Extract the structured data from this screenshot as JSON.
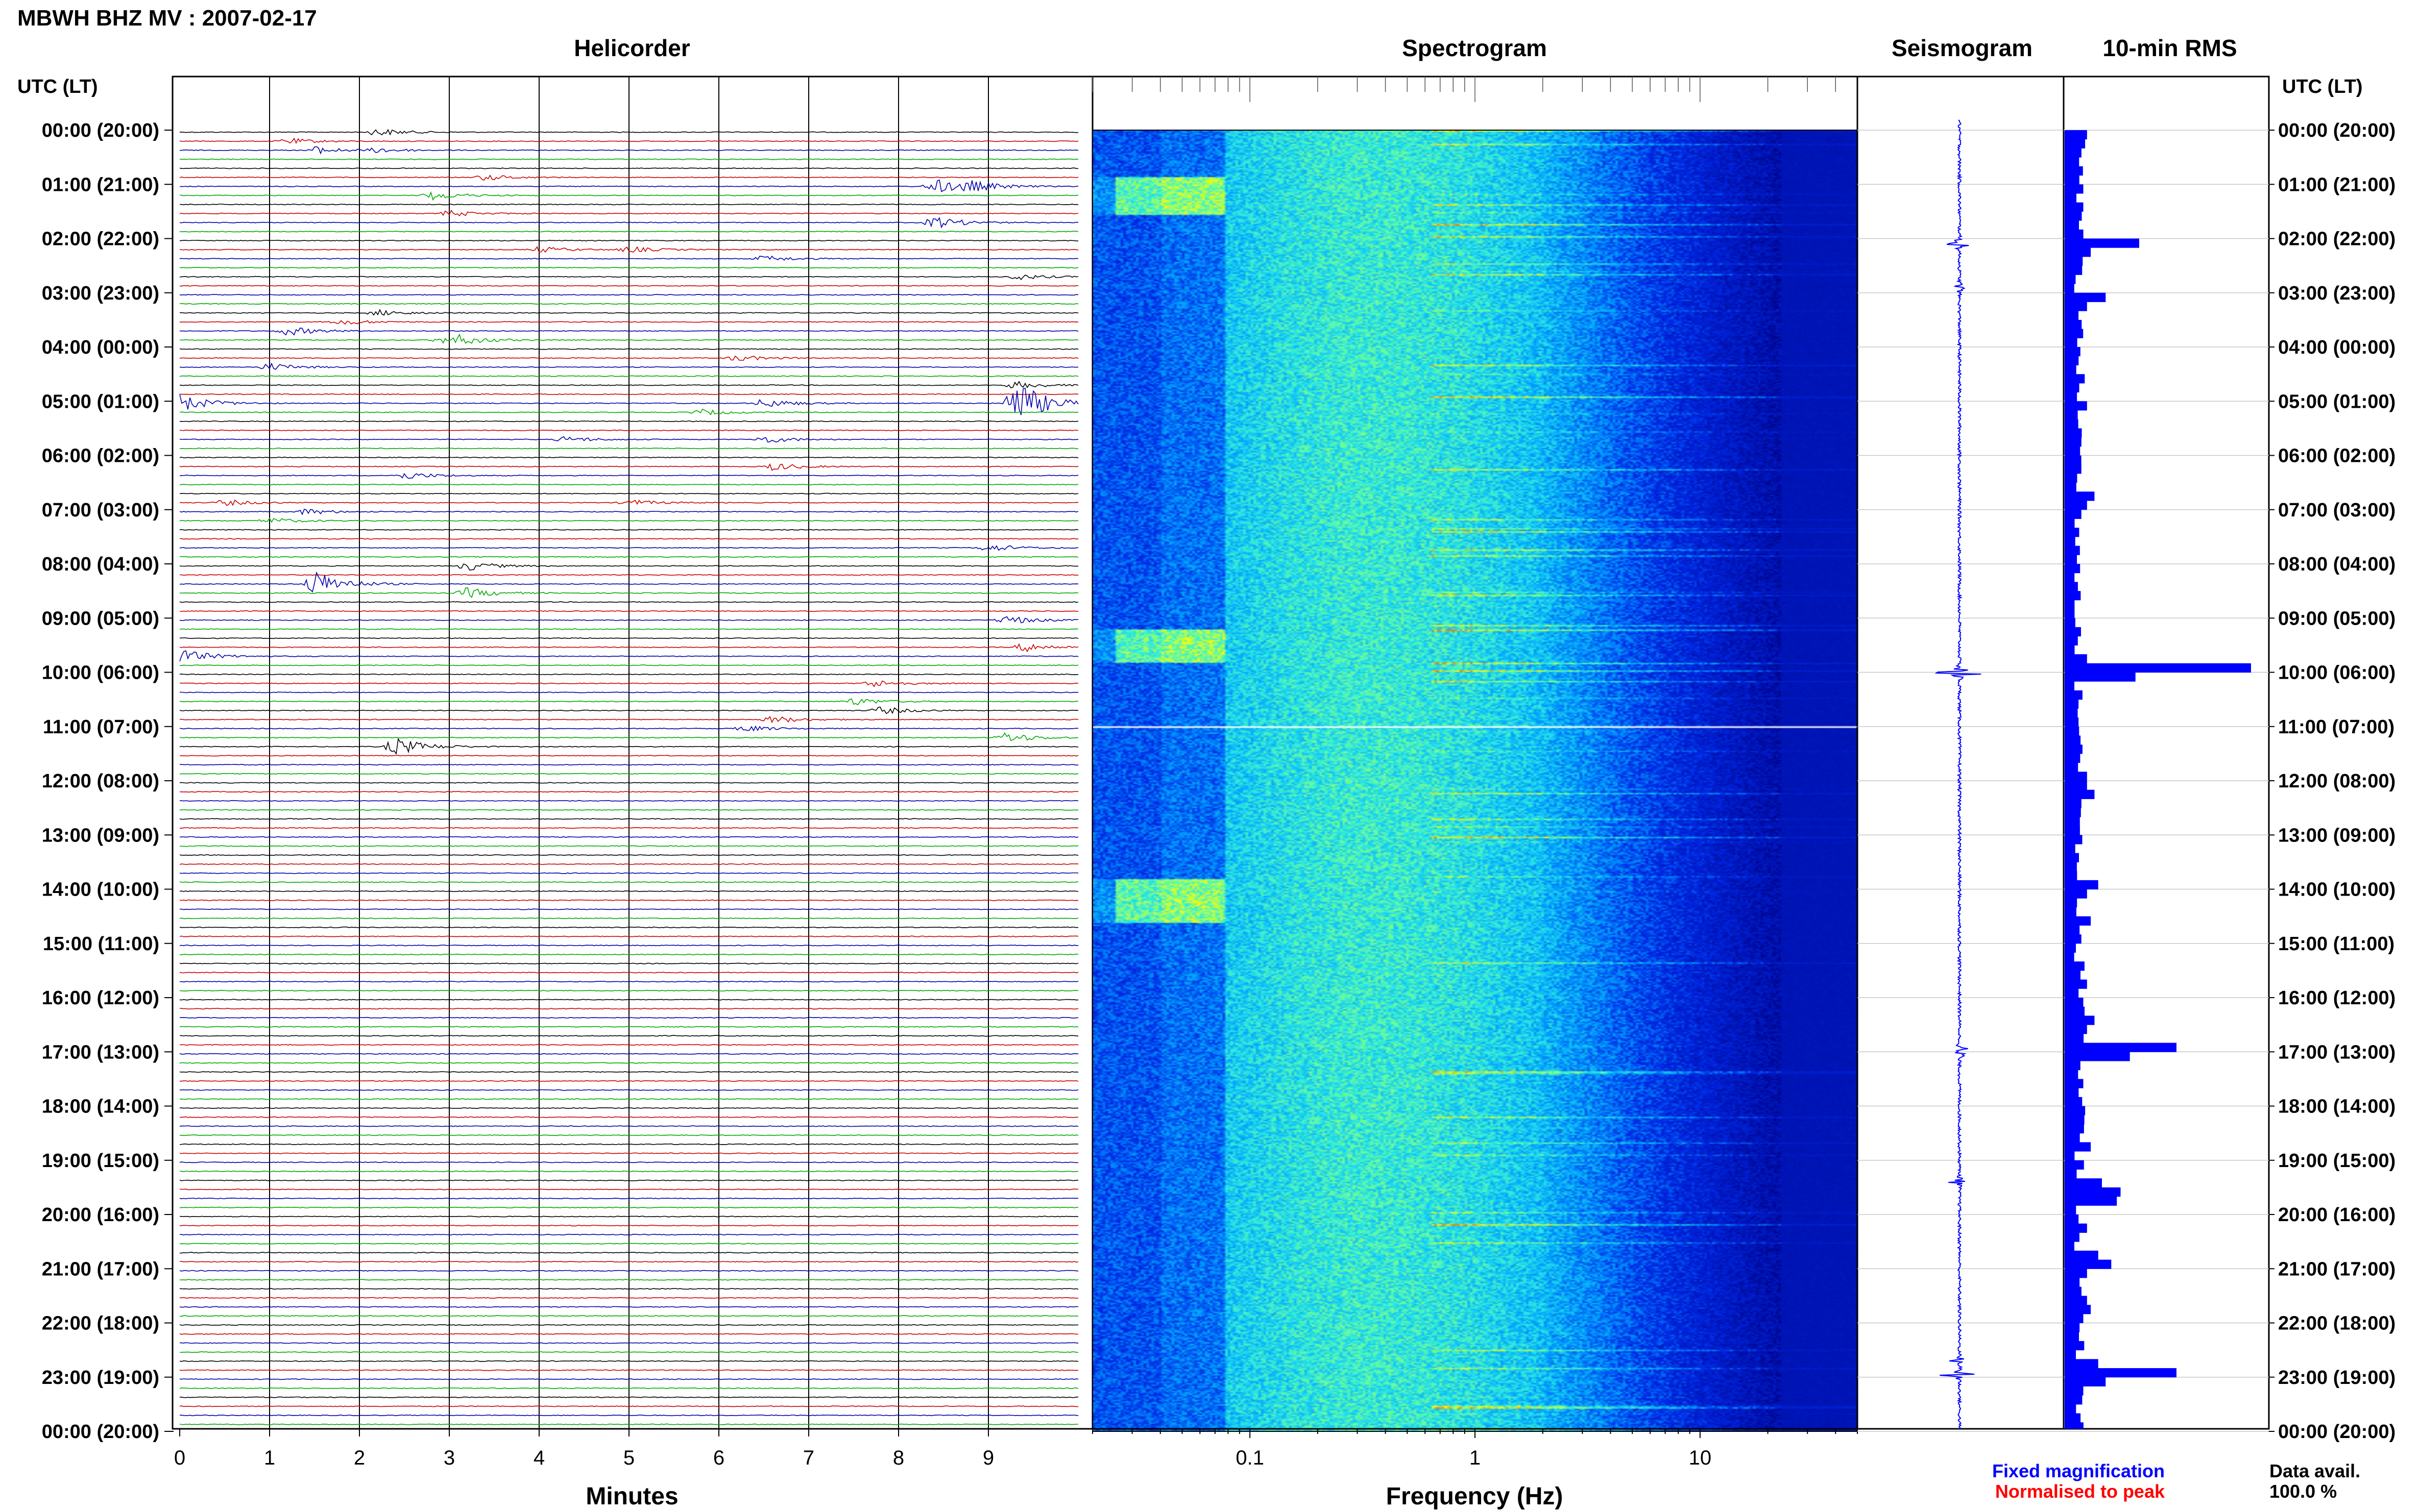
{
  "title": "MBWH BHZ MV : 2007-02-17",
  "panels": {
    "helicorder": "Helicorder",
    "spectrogram": "Spectrogram",
    "seismogram": "Seismogram",
    "rms": "10-min RMS"
  },
  "axis": {
    "time_header_left": "UTC (LT)",
    "time_header_right": "UTC (LT)",
    "minutes_label": "Minutes",
    "frequency_label": "Frequency (Hz)"
  },
  "legend": {
    "fixed": "Fixed magnification",
    "normalised": "Normalised to peak",
    "avail_label": "Data avail.",
    "avail_value": "100.0 %"
  },
  "colors": {
    "fixed": "#0000ff",
    "normalised": "#ff0000",
    "trace_cycle": [
      "#000000",
      "#cc0000",
      "#0000aa",
      "#00aa00"
    ]
  },
  "chart_data": [
    {
      "type": "helicorder",
      "xlabel": "Minutes",
      "x_ticks": [
        0,
        1,
        2,
        3,
        4,
        5,
        6,
        7,
        8,
        9
      ],
      "xlim": [
        0,
        10
      ],
      "rows_per_hour": 6,
      "time_labels": [
        "00:00 (20:00)",
        "01:00 (21:00)",
        "02:00 (22:00)",
        "03:00 (23:00)",
        "04:00 (00:00)",
        "05:00 (01:00)",
        "06:00 (02:00)",
        "07:00 (03:00)",
        "08:00 (04:00)",
        "09:00 (05:00)",
        "10:00 (06:00)",
        "11:00 (07:00)",
        "12:00 (08:00)",
        "13:00 (09:00)",
        "14:00 (10:00)",
        "15:00 (11:00)",
        "16:00 (12:00)",
        "17:00 (13:00)",
        "18:00 (14:00)",
        "19:00 (15:00)",
        "20:00 (16:00)",
        "21:00 (17:00)",
        "22:00 (18:00)",
        "23:00 (19:00)",
        "00:00 (20:00)"
      ],
      "events": [
        {
          "row": 0,
          "minute": 2.2,
          "amp": 0.25
        },
        {
          "row": 1,
          "minute": 1.2,
          "amp": 0.2
        },
        {
          "row": 2,
          "minute": 1.5,
          "amp": 0.25
        },
        {
          "row": 2,
          "minute": 2.2,
          "amp": 0.15
        },
        {
          "row": 5,
          "minute": 3.4,
          "amp": 0.2
        },
        {
          "row": 6,
          "minute": 8.4,
          "amp": 0.5
        },
        {
          "row": 6,
          "minute": 8.8,
          "amp": 0.3
        },
        {
          "row": 7,
          "minute": 2.8,
          "amp": 0.3
        },
        {
          "row": 9,
          "minute": 3.0,
          "amp": 0.2
        },
        {
          "row": 10,
          "minute": 8.4,
          "amp": 0.4
        },
        {
          "row": 13,
          "minute": 4.0,
          "amp": 0.2
        },
        {
          "row": 13,
          "minute": 5.0,
          "amp": 0.2
        },
        {
          "row": 14,
          "minute": 6.5,
          "amp": 0.2
        },
        {
          "row": 16,
          "minute": 9.3,
          "amp": 0.2
        },
        {
          "row": 20,
          "minute": 2.2,
          "amp": 0.2
        },
        {
          "row": 21,
          "minute": 1.8,
          "amp": 0.2
        },
        {
          "row": 22,
          "minute": 1.2,
          "amp": 0.3
        },
        {
          "row": 23,
          "minute": 2.9,
          "amp": 0.2
        },
        {
          "row": 23,
          "minute": 3.1,
          "amp": 0.25
        },
        {
          "row": 25,
          "minute": 6.2,
          "amp": 0.2
        },
        {
          "row": 26,
          "minute": 1.0,
          "amp": 0.25
        },
        {
          "row": 28,
          "minute": 9.3,
          "amp": 0.25
        },
        {
          "row": 30,
          "minute": 0.0,
          "amp": 0.6
        },
        {
          "row": 30,
          "minute": 6.5,
          "amp": 0.3
        },
        {
          "row": 30,
          "minute": 9.3,
          "amp": 1.6
        },
        {
          "row": 31,
          "minute": 5.8,
          "amp": 0.2
        },
        {
          "row": 34,
          "minute": 4.3,
          "amp": 0.2
        },
        {
          "row": 34,
          "minute": 6.5,
          "amp": 0.25
        },
        {
          "row": 37,
          "minute": 6.6,
          "amp": 0.25
        },
        {
          "row": 38,
          "minute": 2.5,
          "amp": 0.25
        },
        {
          "row": 41,
          "minute": 0.5,
          "amp": 0.2
        },
        {
          "row": 41,
          "minute": 5.0,
          "amp": 0.2
        },
        {
          "row": 42,
          "minute": 1.4,
          "amp": 0.2
        },
        {
          "row": 43,
          "minute": 1.0,
          "amp": 0.2
        },
        {
          "row": 46,
          "minute": 9.0,
          "amp": 0.25
        },
        {
          "row": 48,
          "minute": 3.2,
          "amp": 0.3
        },
        {
          "row": 50,
          "minute": 1.5,
          "amp": 0.9
        },
        {
          "row": 51,
          "minute": 3.2,
          "amp": 0.35
        },
        {
          "row": 54,
          "minute": 9.2,
          "amp": 0.3
        },
        {
          "row": 57,
          "minute": 9.4,
          "amp": 0.3
        },
        {
          "row": 58,
          "minute": 0.0,
          "amp": 0.5
        },
        {
          "row": 61,
          "minute": 7.7,
          "amp": 0.25
        },
        {
          "row": 63,
          "minute": 7.5,
          "amp": 0.25
        },
        {
          "row": 64,
          "minute": 7.8,
          "amp": 0.25
        },
        {
          "row": 65,
          "minute": 6.6,
          "amp": 0.25
        },
        {
          "row": 66,
          "minute": 6.3,
          "amp": 0.2
        },
        {
          "row": 67,
          "minute": 9.2,
          "amp": 0.35
        },
        {
          "row": 68,
          "minute": 2.4,
          "amp": 0.6
        }
      ]
    },
    {
      "type": "heatmap",
      "name": "spectrogram",
      "xlabel": "Frequency (Hz)",
      "x_scale": "log",
      "xlim": [
        0.02,
        50
      ],
      "x_ticks": [
        0.1,
        1,
        10
      ],
      "x_tick_labels": [
        "0.1",
        "1",
        "10"
      ],
      "gap_row_utc": "11:00"
    },
    {
      "type": "line",
      "name": "seismogram",
      "spikes": [
        {
          "hour": 2.1,
          "amp": 0.25
        },
        {
          "hour": 2.9,
          "amp": 0.1
        },
        {
          "hour": 10.0,
          "amp": 0.6
        },
        {
          "hour": 17.0,
          "amp": 0.5
        },
        {
          "hour": 19.4,
          "amp": 0.12
        },
        {
          "hour": 22.7,
          "amp": 0.1
        },
        {
          "hour": 22.95,
          "amp": 0.4
        }
      ]
    },
    {
      "type": "bar",
      "name": "10-min RMS",
      "orientation": "horizontal",
      "bins_per_hour": 6,
      "peaks": [
        {
          "bin": 0,
          "value": 12
        },
        {
          "bin": 1,
          "value": 11
        },
        {
          "bin": 2,
          "value": 9
        },
        {
          "bin": 6,
          "value": 10
        },
        {
          "bin": 8,
          "value": 10
        },
        {
          "bin": 12,
          "value": 40
        },
        {
          "bin": 13,
          "value": 14
        },
        {
          "bin": 18,
          "value": 22
        },
        {
          "bin": 19,
          "value": 12
        },
        {
          "bin": 30,
          "value": 12
        },
        {
          "bin": 31,
          "value": 7
        },
        {
          "bin": 40,
          "value": 16
        },
        {
          "bin": 41,
          "value": 12
        },
        {
          "bin": 58,
          "value": 12
        },
        {
          "bin": 59,
          "value": 100
        },
        {
          "bin": 60,
          "value": 38
        },
        {
          "bin": 71,
          "value": 12
        },
        {
          "bin": 72,
          "value": 12
        },
        {
          "bin": 73,
          "value": 16
        },
        {
          "bin": 83,
          "value": 18
        },
        {
          "bin": 84,
          "value": 12
        },
        {
          "bin": 87,
          "value": 14
        },
        {
          "bin": 88,
          "value": 8
        },
        {
          "bin": 94,
          "value": 12
        },
        {
          "bin": 96,
          "value": 10
        },
        {
          "bin": 98,
          "value": 16
        },
        {
          "bin": 99,
          "value": 12
        },
        {
          "bin": 101,
          "value": 60
        },
        {
          "bin": 102,
          "value": 35
        },
        {
          "bin": 105,
          "value": 10
        },
        {
          "bin": 112,
          "value": 14
        },
        {
          "bin": 116,
          "value": 20
        },
        {
          "bin": 117,
          "value": 30
        },
        {
          "bin": 118,
          "value": 28
        },
        {
          "bin": 121,
          "value": 12
        },
        {
          "bin": 124,
          "value": 18
        },
        {
          "bin": 125,
          "value": 25
        },
        {
          "bin": 126,
          "value": 12
        },
        {
          "bin": 127,
          "value": 8
        },
        {
          "bin": 129,
          "value": 12
        },
        {
          "bin": 130,
          "value": 14
        },
        {
          "bin": 131,
          "value": 10
        },
        {
          "bin": 132,
          "value": 8
        },
        {
          "bin": 136,
          "value": 18
        },
        {
          "bin": 137,
          "value": 60
        },
        {
          "bin": 138,
          "value": 22
        },
        {
          "bin": 139,
          "value": 10
        }
      ]
    }
  ]
}
